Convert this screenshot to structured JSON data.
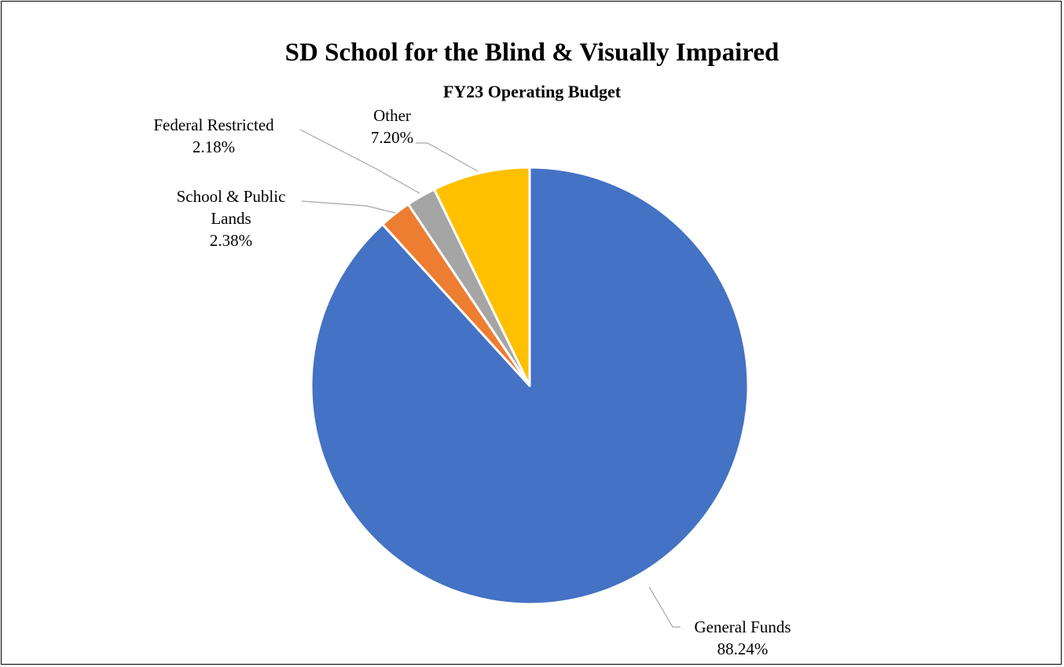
{
  "chart_data": {
    "type": "pie",
    "title": "SD School for the Blind & Visually Impaired",
    "subtitle": "FY23 Operating Budget",
    "legend": "none",
    "slices": [
      {
        "name": "General Funds",
        "label_lines": [
          "General Funds"
        ],
        "value": 88.24,
        "value_label": "88.24%",
        "color": "#4472C4"
      },
      {
        "name": "School & Public Lands",
        "label_lines": [
          "School & Public",
          "Lands"
        ],
        "value": 2.38,
        "value_label": "2.38%",
        "color": "#ED7D31"
      },
      {
        "name": "Federal Restricted",
        "label_lines": [
          "Federal Restricted"
        ],
        "value": 2.18,
        "value_label": "2.18%",
        "color": "#A5A5A5"
      },
      {
        "name": "Other",
        "label_lines": [
          "Other"
        ],
        "value": 7.2,
        "value_label": "7.20%",
        "color": "#FFC000"
      }
    ]
  }
}
